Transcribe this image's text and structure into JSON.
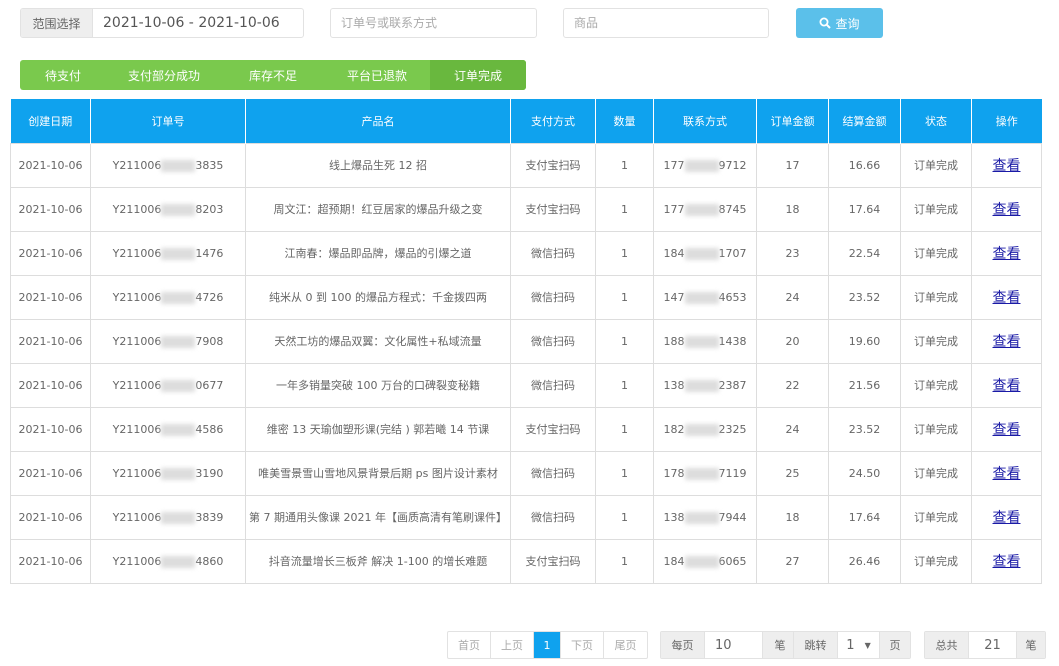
{
  "filters": {
    "range_label": "范围选择",
    "range_value": "2021-10-06 - 2021-10-06",
    "order_placeholder": "订单号或联系方式",
    "product_placeholder": "商品",
    "query_label": "查询",
    "query_icon": "search-icon",
    "accent": "#5bc0ea"
  },
  "tabs": [
    {
      "label": "待支付",
      "active": false
    },
    {
      "label": "支付部分成功",
      "active": false
    },
    {
      "label": "库存不足",
      "active": false
    },
    {
      "label": "平台已退款",
      "active": false
    },
    {
      "label": "订单完成",
      "active": true
    }
  ],
  "table": {
    "headers": [
      "创建日期",
      "订单号",
      "产品名",
      "支付方式",
      "数量",
      "联系方式",
      "订单金额",
      "结算金额",
      "状态",
      "操作"
    ],
    "action_label": "查看",
    "rows": [
      {
        "date": "2021-10-06",
        "order_prefix": "Y211006",
        "order_suffix": "3835",
        "product": "线上爆品生死 12 招",
        "pay": "支付宝扫码",
        "qty": "1",
        "phone_prefix": "177",
        "phone_suffix": "9712",
        "amount": "17",
        "settle": "16.66",
        "status": "订单完成"
      },
      {
        "date": "2021-10-06",
        "order_prefix": "Y211006",
        "order_suffix": "8203",
        "product": "周文江：超预期！红豆居家的爆品升级之变",
        "pay": "支付宝扫码",
        "qty": "1",
        "phone_prefix": "177",
        "phone_suffix": "8745",
        "amount": "18",
        "settle": "17.64",
        "status": "订单完成"
      },
      {
        "date": "2021-10-06",
        "order_prefix": "Y211006",
        "order_suffix": "1476",
        "product": "江南春：爆品即品牌，爆品的引爆之道",
        "pay": "微信扫码",
        "qty": "1",
        "phone_prefix": "184",
        "phone_suffix": "1707",
        "amount": "23",
        "settle": "22.54",
        "status": "订单完成"
      },
      {
        "date": "2021-10-06",
        "order_prefix": "Y211006",
        "order_suffix": "4726",
        "product": "纯米从 0 到 100 的爆品方程式：千金拨四两",
        "pay": "微信扫码",
        "qty": "1",
        "phone_prefix": "147",
        "phone_suffix": "4653",
        "amount": "24",
        "settle": "23.52",
        "status": "订单完成"
      },
      {
        "date": "2021-10-06",
        "order_prefix": "Y211006",
        "order_suffix": "7908",
        "product": "天然工坊的爆品双翼：文化属性+私域流量",
        "pay": "微信扫码",
        "qty": "1",
        "phone_prefix": "188",
        "phone_suffix": "1438",
        "amount": "20",
        "settle": "19.60",
        "status": "订单完成"
      },
      {
        "date": "2021-10-06",
        "order_prefix": "Y211006",
        "order_suffix": "0677",
        "product": "一年多销量突破 100 万台的口碑裂变秘籍",
        "pay": "微信扫码",
        "qty": "1",
        "phone_prefix": "138",
        "phone_suffix": "2387",
        "amount": "22",
        "settle": "21.56",
        "status": "订单完成"
      },
      {
        "date": "2021-10-06",
        "order_prefix": "Y211006",
        "order_suffix": "4586",
        "product": "维密 13 天瑜伽塑形课(完结 ) 郭若曦 14 节课",
        "pay": "支付宝扫码",
        "qty": "1",
        "phone_prefix": "182",
        "phone_suffix": "2325",
        "amount": "24",
        "settle": "23.52",
        "status": "订单完成"
      },
      {
        "date": "2021-10-06",
        "order_prefix": "Y211006",
        "order_suffix": "3190",
        "product": "唯美雪景雪山雪地风景背景后期 ps 图片设计素材",
        "pay": "微信扫码",
        "qty": "1",
        "phone_prefix": "178",
        "phone_suffix": "7119",
        "amount": "25",
        "settle": "24.50",
        "status": "订单完成"
      },
      {
        "date": "2021-10-06",
        "order_prefix": "Y211006",
        "order_suffix": "3839",
        "product": "第 7 期通用头像课 2021 年【画质高清有笔刷课件】",
        "pay": "微信扫码",
        "qty": "1",
        "phone_prefix": "138",
        "phone_suffix": "7944",
        "amount": "18",
        "settle": "17.64",
        "status": "订单完成"
      },
      {
        "date": "2021-10-06",
        "order_prefix": "Y211006",
        "order_suffix": "4860",
        "product": "抖音流量增长三板斧 解决 1-100 的增长难题",
        "pay": "支付宝扫码",
        "qty": "1",
        "phone_prefix": "184",
        "phone_suffix": "6065",
        "amount": "27",
        "settle": "26.46",
        "status": "订单完成"
      }
    ]
  },
  "pagination": {
    "first": "首页",
    "prev": "上页",
    "current": "1",
    "next": "下页",
    "last": "尾页",
    "per_page_label": "每页",
    "per_page_value": "10",
    "per_page_unit": "笔",
    "jump_label": "跳转",
    "jump_value": "1",
    "jump_unit": "页",
    "total_label": "总共",
    "total_value": "21",
    "total_unit": "笔"
  }
}
